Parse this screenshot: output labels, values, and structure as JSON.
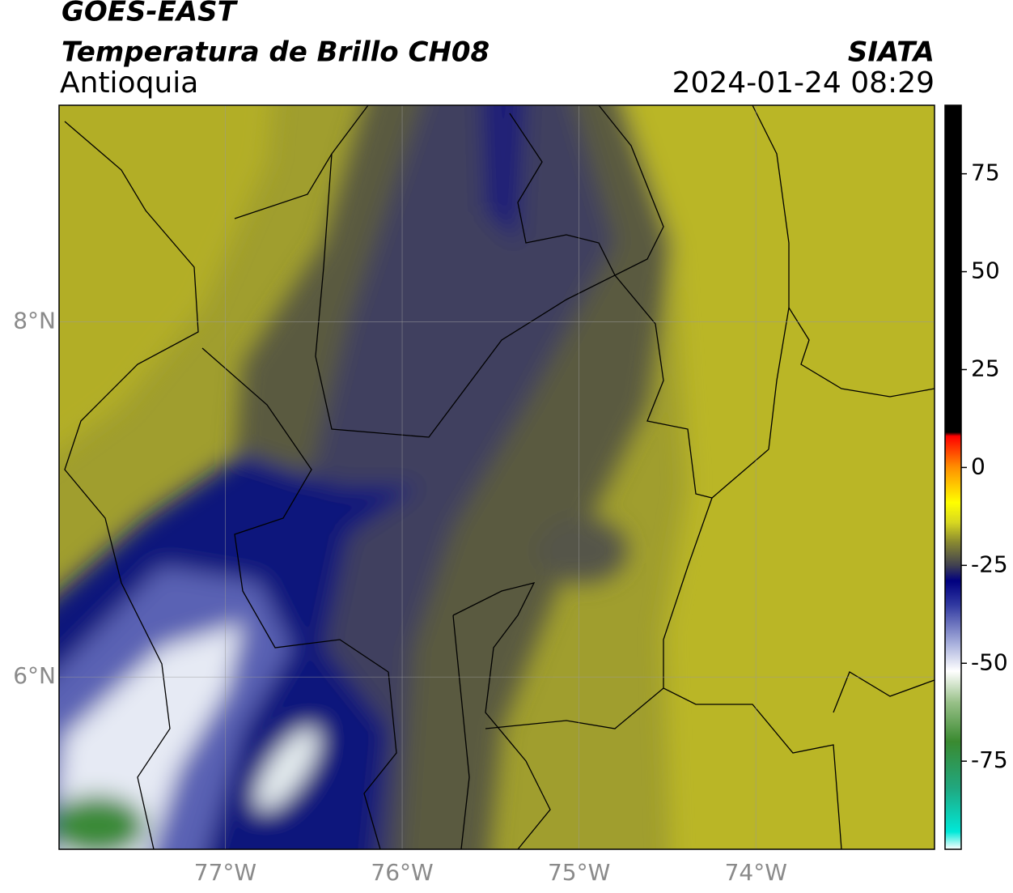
{
  "chart_data": {
    "type": "map",
    "title": "GOES-EAST",
    "subtitle": "Temperatura de Brillo CH08",
    "region": "Antioquia",
    "source": "SIATA",
    "datetime": "2024-01-24 08:29",
    "xlim": [
      -77.94,
      -72.99
    ],
    "ylim": [
      5.03,
      9.22
    ],
    "xticks": [
      {
        "value": -77,
        "label": "77°W"
      },
      {
        "value": -76,
        "label": "76°W"
      },
      {
        "value": -75,
        "label": "75°W"
      },
      {
        "value": -74,
        "label": "74°W"
      }
    ],
    "yticks": [
      {
        "value": 6,
        "label": "6°N"
      },
      {
        "value": 8,
        "label": "8°N"
      }
    ],
    "grid": true,
    "colorbar": {
      "clim": [
        -97.5,
        92.5
      ],
      "ticks": [
        -75,
        -50,
        -25,
        0,
        25,
        50,
        75
      ],
      "stops": [
        {
          "value": -97.5,
          "color": "#ffffff"
        },
        {
          "value": -93,
          "color": "#00e8d8"
        },
        {
          "value": -82,
          "color": "#20a880"
        },
        {
          "value": -70,
          "color": "#3a8a30"
        },
        {
          "value": -60,
          "color": "#98c088"
        },
        {
          "value": -52,
          "color": "#ffffff"
        },
        {
          "value": -45,
          "color": "#a8b0dc"
        },
        {
          "value": -35,
          "color": "#3038a0"
        },
        {
          "value": -29,
          "color": "#000080"
        },
        {
          "value": -25,
          "color": "#404050"
        },
        {
          "value": -19,
          "color": "#8a8a30"
        },
        {
          "value": -14,
          "color": "#d8d820"
        },
        {
          "value": -9,
          "color": "#ffff00"
        },
        {
          "value": 0,
          "color": "#ff9000"
        },
        {
          "value": 8,
          "color": "#ff0000"
        },
        {
          "value": 9,
          "color": "#000000"
        },
        {
          "value": 92.5,
          "color": "#000000"
        }
      ]
    }
  }
}
